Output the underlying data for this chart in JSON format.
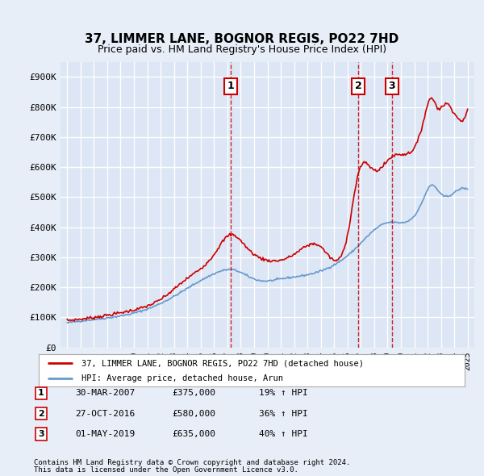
{
  "title": "37, LIMMER LANE, BOGNOR REGIS, PO22 7HD",
  "subtitle": "Price paid vs. HM Land Registry's House Price Index (HPI)",
  "background_color": "#e8eef8",
  "plot_bg_color": "#dce6f5",
  "grid_color": "#ffffff",
  "transactions": [
    {
      "date_num": 2007.23,
      "price": 375000,
      "label": "1"
    },
    {
      "date_num": 2016.82,
      "price": 580000,
      "label": "2"
    },
    {
      "date_num": 2019.33,
      "price": 635000,
      "label": "3"
    }
  ],
  "transaction_dates": [
    "30-MAR-2007",
    "27-OCT-2016",
    "01-MAY-2019"
  ],
  "transaction_prices": [
    "£375,000",
    "£580,000",
    "£635,000"
  ],
  "transaction_hpi": [
    "19% ↑ HPI",
    "36% ↑ HPI",
    "40% ↑ HPI"
  ],
  "legend_line1": "37, LIMMER LANE, BOGNOR REGIS, PO22 7HD (detached house)",
  "legend_line2": "HPI: Average price, detached house, Arun",
  "footnote1": "Contains HM Land Registry data © Crown copyright and database right 2024.",
  "footnote2": "This data is licensed under the Open Government Licence v3.0.",
  "hpi_color": "#6699cc",
  "price_color": "#cc0000",
  "vline_color": "#cc0000",
  "ylim": [
    0,
    950000
  ],
  "yticks": [
    0,
    100000,
    200000,
    300000,
    400000,
    500000,
    600000,
    700000,
    800000,
    900000
  ],
  "ytick_labels": [
    "£0",
    "£100K",
    "£200K",
    "£300K",
    "£400K",
    "£500K",
    "£600K",
    "£700K",
    "£800K",
    "£900K"
  ],
  "xlim_start": 1994.5,
  "xlim_end": 2025.5,
  "hpi_anchors_t": [
    1995.0,
    1997.0,
    1999.0,
    2001.0,
    2003.0,
    2004.5,
    2006.0,
    2007.5,
    2008.5,
    2009.5,
    2011.0,
    2013.0,
    2015.0,
    2016.5,
    2017.5,
    2019.0,
    2020.5,
    2021.5,
    2022.3,
    2023.0,
    2024.0,
    2025.0
  ],
  "hpi_anchors_p": [
    82000,
    93000,
    105000,
    128000,
    170000,
    210000,
    245000,
    258000,
    238000,
    222000,
    228000,
    242000,
    275000,
    325000,
    370000,
    415000,
    420000,
    475000,
    540000,
    510000,
    515000,
    525000
  ],
  "prop_anchors_t": [
    1995.0,
    1997.0,
    1999.5,
    2002.0,
    2004.0,
    2006.0,
    2007.23,
    2008.5,
    2010.0,
    2012.0,
    2014.0,
    2016.0,
    2016.82,
    2018.0,
    2019.33,
    2020.5,
    2021.5,
    2022.3,
    2022.8,
    2023.3,
    2024.0,
    2025.0
  ],
  "prop_anchors_p": [
    90000,
    100000,
    120000,
    160000,
    230000,
    310000,
    375000,
    330000,
    290000,
    310000,
    335000,
    375000,
    580000,
    590000,
    635000,
    645000,
    720000,
    830000,
    795000,
    810000,
    780000,
    790000
  ]
}
